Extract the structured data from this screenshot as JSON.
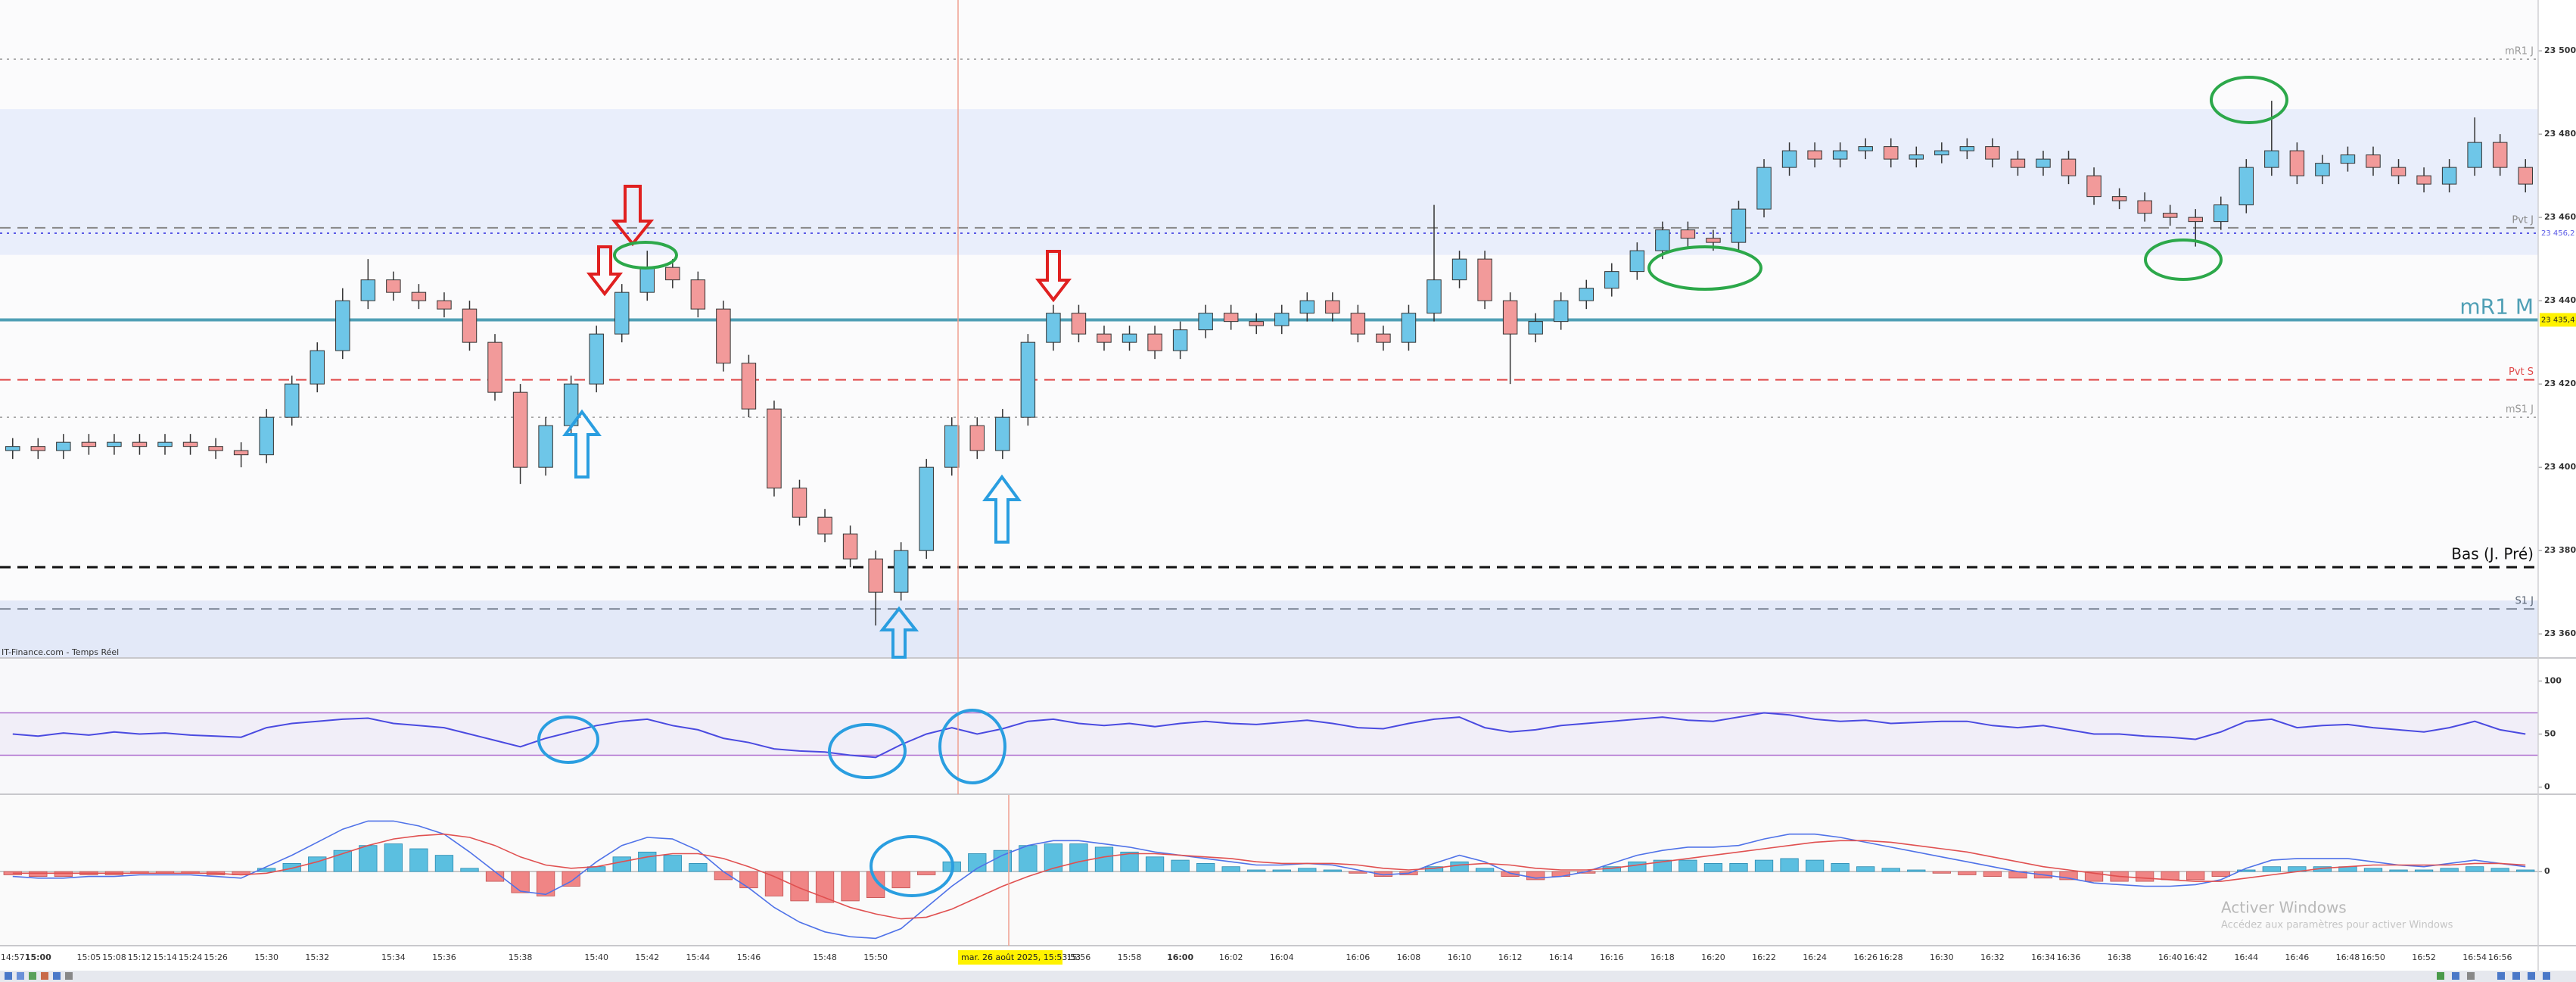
{
  "chart_data": [
    {
      "type": "candlestick",
      "source": "IT-Finance.com - Temps Réel",
      "tooltip": "mar. 26 août 2025, 15:53:53",
      "categories": [
        "14:57",
        "15:00",
        null,
        "15:05",
        "15:08",
        "15:12",
        "15:14",
        "15:24",
        "15:26",
        null,
        "15:30",
        null,
        "15:32",
        null,
        null,
        "15:34",
        null,
        "15:36",
        null,
        null,
        "15:38",
        null,
        null,
        "15:40",
        null,
        "15:42",
        null,
        "15:44",
        null,
        "15:46",
        null,
        null,
        "15:48",
        null,
        "15:50",
        null,
        null,
        null,
        null,
        null,
        null,
        null,
        "15:56",
        null,
        "15:58",
        null,
        "16:00",
        null,
        "16:02",
        null,
        "16:04",
        null,
        null,
        "16:06",
        null,
        "16:08",
        null,
        "16:10",
        null,
        "16:12",
        null,
        "16:14",
        null,
        "16:16",
        null,
        "16:18",
        null,
        "16:20",
        null,
        "16:22",
        null,
        "16:24",
        null,
        "16:26",
        "16:28",
        null,
        "16:30",
        null,
        "16:32",
        null,
        "16:34",
        "16:36",
        null,
        "16:38",
        null,
        "16:40",
        "16:42",
        null,
        "16:44",
        null,
        "16:46",
        null,
        "16:48",
        "16:50",
        null,
        "16:52",
        null,
        "16:54",
        "16:56",
        null
      ],
      "open": [
        23404,
        23405,
        23404,
        23406,
        23405,
        23406,
        23405,
        23406,
        23405,
        23404,
        23403,
        23412,
        23420,
        23428,
        23440,
        23445,
        23442,
        23440,
        23438,
        23430,
        23418,
        23400,
        23410,
        23420,
        23432,
        23442,
        23448,
        23445,
        23438,
        23425,
        23414,
        23395,
        23388,
        23384,
        23378,
        23370,
        23380,
        23400,
        23410,
        23404,
        23412,
        23430,
        23437,
        23432,
        23430,
        23432,
        23428,
        23433,
        23437,
        23435,
        23434,
        23437,
        23440,
        23437,
        23432,
        23430,
        23437,
        23445,
        23450,
        23440,
        23432,
        23435,
        23440,
        23443,
        23447,
        23452,
        23457,
        23455,
        23454,
        23462,
        23472,
        23476,
        23474,
        23476,
        23477,
        23474,
        23475,
        23476,
        23477,
        23474,
        23472,
        23474,
        23470,
        23465,
        23464,
        23461,
        23460,
        23459,
        23463,
        23472,
        23476,
        23470,
        23473,
        23475,
        23472,
        23470,
        23468,
        23472,
        23478,
        23472
      ],
      "high": [
        23407,
        23407,
        23408,
        23408,
        23408,
        23408,
        23408,
        23408,
        23407,
        23406,
        23414,
        23422,
        23430,
        23443,
        23450,
        23447,
        23444,
        23442,
        23440,
        23432,
        23420,
        23412,
        23422,
        23434,
        23444,
        23452,
        23450,
        23447,
        23440,
        23427,
        23416,
        23397,
        23390,
        23386,
        23380,
        23382,
        23402,
        23412,
        23412,
        23414,
        23432,
        23439,
        23439,
        23434,
        23434,
        23434,
        23435,
        23439,
        23439,
        23437,
        23439,
        23442,
        23442,
        23439,
        23434,
        23439,
        23463,
        23452,
        23452,
        23442,
        23437,
        23442,
        23445,
        23449,
        23454,
        23459,
        23459,
        23457,
        23464,
        23474,
        23478,
        23478,
        23478,
        23479,
        23479,
        23477,
        23478,
        23479,
        23479,
        23476,
        23476,
        23476,
        23472,
        23467,
        23466,
        23463,
        23462,
        23465,
        23474,
        23488,
        23478,
        23475,
        23477,
        23477,
        23474,
        23472,
        23474,
        23484,
        23480,
        23474
      ],
      "low": [
        23402,
        23402,
        23402,
        23403,
        23403,
        23403,
        23403,
        23403,
        23402,
        23400,
        23401,
        23410,
        23418,
        23426,
        23438,
        23440,
        23438,
        23436,
        23428,
        23416,
        23396,
        23398,
        23408,
        23418,
        23430,
        23440,
        23443,
        23436,
        23423,
        23412,
        23393,
        23386,
        23382,
        23376,
        23362,
        23368,
        23378,
        23398,
        23402,
        23402,
        23410,
        23428,
        23430,
        23428,
        23428,
        23426,
        23426,
        23431,
        23433,
        23432,
        23432,
        23435,
        23435,
        23430,
        23428,
        23428,
        23435,
        23443,
        23438,
        23420,
        23430,
        23433,
        23438,
        23441,
        23445,
        23450,
        23453,
        23452,
        23452,
        23460,
        23470,
        23472,
        23472,
        23474,
        23472,
        23472,
        23473,
        23474,
        23472,
        23470,
        23470,
        23468,
        23463,
        23462,
        23459,
        23458,
        23453,
        23457,
        23461,
        23470,
        23468,
        23468,
        23471,
        23470,
        23468,
        23466,
        23466,
        23470,
        23470,
        23466
      ],
      "close": [
        23405,
        23404,
        23406,
        23405,
        23406,
        23405,
        23406,
        23405,
        23404,
        23403,
        23412,
        23420,
        23428,
        23440,
        23445,
        23442,
        23440,
        23438,
        23430,
        23418,
        23400,
        23410,
        23420,
        23432,
        23442,
        23448,
        23445,
        23438,
        23425,
        23414,
        23395,
        23388,
        23384,
        23378,
        23370,
        23380,
        23400,
        23410,
        23404,
        23412,
        23430,
        23437,
        23432,
        23430,
        23432,
        23428,
        23433,
        23437,
        23435,
        23434,
        23437,
        23440,
        23437,
        23432,
        23430,
        23437,
        23445,
        23450,
        23440,
        23432,
        23435,
        23440,
        23443,
        23447,
        23452,
        23457,
        23455,
        23454,
        23462,
        23472,
        23476,
        23474,
        23476,
        23477,
        23474,
        23475,
        23476,
        23477,
        23474,
        23472,
        23474,
        23470,
        23465,
        23464,
        23461,
        23460,
        23459,
        23463,
        23472,
        23476,
        23470,
        23473,
        23475,
        23472,
        23470,
        23468,
        23472,
        23478,
        23472,
        23468
      ],
      "up_color": "#6ec6e8",
      "down_color": "#f29a9a",
      "wick_color": "#333333",
      "ylim": [
        23354.4,
        23512.2
      ],
      "yticks": [
        {
          "value": 23360,
          "label": "23 360"
        },
        {
          "value": 23380,
          "label": "23 380"
        },
        {
          "value": 23400,
          "label": "23 400"
        },
        {
          "value": 23420,
          "label": "23 420"
        },
        {
          "value": 23440,
          "label": "23 440"
        },
        {
          "value": 23460,
          "label": "23 460"
        },
        {
          "value": 23480,
          "label": "23 480"
        },
        {
          "value": 23500,
          "label": "23 500"
        }
      ],
      "zones": [
        {
          "range": [
            23451,
            23486
          ],
          "color": "#e9eefb"
        },
        {
          "range": [
            23354.4,
            23368
          ],
          "color": "#e3e9f8"
        }
      ],
      "levels": [
        {
          "name": "mR1 J",
          "value": 23498,
          "color": "#999999",
          "style": "dotted",
          "width": 1.5
        },
        {
          "name": "Pvt J",
          "value": 23457.5,
          "color": "#888888",
          "style": "dashed",
          "width": 2
        },
        {
          "value": 23456.2,
          "label": "23 456,2",
          "color": "#5a5ae6",
          "style": "dotted",
          "width": 2
        },
        {
          "name": "mR1 M",
          "value": 23435.4,
          "label": "23 435,4",
          "label_bg": "#fff200",
          "color": "#4f9fb5",
          "style": "solid",
          "width": 4
        },
        {
          "name": "Pvt S",
          "value": 23421,
          "color": "#e04848",
          "style": "dashed",
          "width": 2
        },
        {
          "name": "mS1 J",
          "value": 23412,
          "color": "#999999",
          "style": "dotted",
          "width": 1.5
        },
        {
          "name": "Bas (J. Pré)",
          "value": 23376,
          "color": "#111111",
          "style": "dashed",
          "width": 3
        },
        {
          "name": "S1 J",
          "value": 23366,
          "color": "#556070",
          "style": "dashed",
          "width": 1.5
        }
      ]
    },
    {
      "type": "line",
      "ylim": [
        -6,
        121
      ],
      "yticks": [
        0,
        50,
        100
      ],
      "bands": [
        30,
        70
      ],
      "band_color": "#b070d0",
      "series": [
        {
          "color": "#4a4ae0",
          "values": [
            50,
            48,
            51,
            49,
            52,
            50,
            51,
            49,
            48,
            47,
            56,
            60,
            62,
            64,
            65,
            60,
            58,
            56,
            50,
            44,
            38,
            46,
            52,
            58,
            62,
            64,
            58,
            54,
            46,
            42,
            36,
            34,
            33,
            30,
            28,
            40,
            50,
            56,
            50,
            55,
            62,
            64,
            60,
            58,
            60,
            57,
            60,
            62,
            60,
            59,
            61,
            63,
            60,
            56,
            55,
            60,
            64,
            66,
            56,
            52,
            54,
            58,
            60,
            62,
            64,
            66,
            63,
            62,
            66,
            70,
            68,
            64,
            62,
            63,
            60,
            61,
            62,
            62,
            58,
            56,
            58,
            54,
            50,
            50,
            48,
            47,
            45,
            52,
            62,
            64,
            56,
            58,
            59,
            56,
            54,
            52,
            56,
            62,
            54,
            50
          ]
        }
      ]
    },
    {
      "type": "bar",
      "ylim": [
        -4.5,
        4.7
      ],
      "yticks": [
        0
      ],
      "up_color": "#5bbfe0",
      "down_color": "#f08585",
      "values": [
        -0.2,
        -0.3,
        -0.3,
        -0.2,
        -0.2,
        -0.1,
        -0.1,
        -0.1,
        -0.2,
        -0.2,
        0.2,
        0.5,
        0.9,
        1.3,
        1.6,
        1.7,
        1.4,
        1.0,
        0.2,
        -0.6,
        -1.3,
        -1.5,
        -0.9,
        0.3,
        0.9,
        1.2,
        1.0,
        0.5,
        -0.5,
        -1.0,
        -1.5,
        -1.8,
        -1.9,
        -1.8,
        -1.6,
        -1.0,
        -0.2,
        0.6,
        1.1,
        1.3,
        1.6,
        1.7,
        1.7,
        1.5,
        1.2,
        0.9,
        0.7,
        0.5,
        0.3,
        0.1,
        0.1,
        0.2,
        0.1,
        -0.1,
        -0.3,
        -0.2,
        0.3,
        0.6,
        0.2,
        -0.3,
        -0.5,
        -0.3,
        -0.1,
        0.3,
        0.6,
        0.7,
        0.7,
        0.5,
        0.5,
        0.7,
        0.8,
        0.7,
        0.5,
        0.3,
        0.2,
        0.1,
        -0.1,
        -0.2,
        -0.3,
        -0.4,
        -0.4,
        -0.5,
        -0.6,
        -0.6,
        -0.6,
        -0.5,
        -0.5,
        -0.3,
        0.1,
        0.3,
        0.3,
        0.3,
        0.3,
        0.2,
        0.1,
        0.1,
        0.2,
        0.3,
        0.2,
        0.1
      ],
      "series": [
        {
          "color": "#4f72e8",
          "values": [
            -0.3,
            -0.4,
            -0.4,
            -0.3,
            -0.3,
            -0.2,
            -0.2,
            -0.2,
            -0.3,
            -0.4,
            0.3,
            1.0,
            1.8,
            2.6,
            3.1,
            3.1,
            2.8,
            2.3,
            1.2,
            0.0,
            -1.2,
            -1.4,
            -0.6,
            0.6,
            1.6,
            2.1,
            2.0,
            1.3,
            0.0,
            -1.0,
            -2.2,
            -3.1,
            -3.7,
            -4.0,
            -4.1,
            -3.5,
            -2.2,
            -0.9,
            0.2,
            1.0,
            1.6,
            1.9,
            1.9,
            1.7,
            1.5,
            1.2,
            1.0,
            0.8,
            0.6,
            0.4,
            0.4,
            0.5,
            0.4,
            0.1,
            -0.2,
            -0.1,
            0.5,
            1.0,
            0.6,
            -0.1,
            -0.4,
            -0.3,
            0.0,
            0.5,
            1.0,
            1.3,
            1.5,
            1.5,
            1.6,
            2.0,
            2.3,
            2.3,
            2.1,
            1.8,
            1.5,
            1.2,
            0.9,
            0.6,
            0.3,
            0.0,
            -0.2,
            -0.4,
            -0.7,
            -0.8,
            -0.9,
            -0.9,
            -0.8,
            -0.5,
            0.2,
            0.7,
            0.8,
            0.8,
            0.8,
            0.6,
            0.4,
            0.3,
            0.5,
            0.7,
            0.5,
            0.3
          ]
        },
        {
          "color": "#e05050",
          "values": [
            -0.1,
            -0.1,
            -0.1,
            -0.1,
            -0.1,
            -0.1,
            -0.1,
            -0.1,
            -0.1,
            -0.2,
            -0.1,
            0.2,
            0.6,
            1.1,
            1.6,
            2.0,
            2.2,
            2.3,
            2.1,
            1.6,
            0.9,
            0.4,
            0.2,
            0.3,
            0.6,
            0.9,
            1.1,
            1.1,
            0.8,
            0.3,
            -0.3,
            -1.0,
            -1.6,
            -2.2,
            -2.6,
            -2.9,
            -2.8,
            -2.3,
            -1.6,
            -0.9,
            -0.3,
            0.2,
            0.6,
            0.9,
            1.1,
            1.1,
            1.0,
            0.9,
            0.8,
            0.6,
            0.5,
            0.5,
            0.5,
            0.4,
            0.2,
            0.1,
            0.2,
            0.4,
            0.5,
            0.4,
            0.2,
            0.1,
            0.1,
            0.2,
            0.4,
            0.6,
            0.8,
            1.0,
            1.2,
            1.4,
            1.6,
            1.8,
            1.9,
            1.9,
            1.8,
            1.6,
            1.4,
            1.2,
            0.9,
            0.6,
            0.3,
            0.1,
            -0.1,
            -0.3,
            -0.4,
            -0.5,
            -0.6,
            -0.6,
            -0.4,
            -0.2,
            0.0,
            0.2,
            0.3,
            0.4,
            0.4,
            0.4,
            0.4,
            0.5,
            0.5,
            0.4
          ]
        }
      ]
    }
  ],
  "watermark": {
    "title": "Activer Windows",
    "subtitle": "Accédez aux paramètres pour activer Windows"
  }
}
